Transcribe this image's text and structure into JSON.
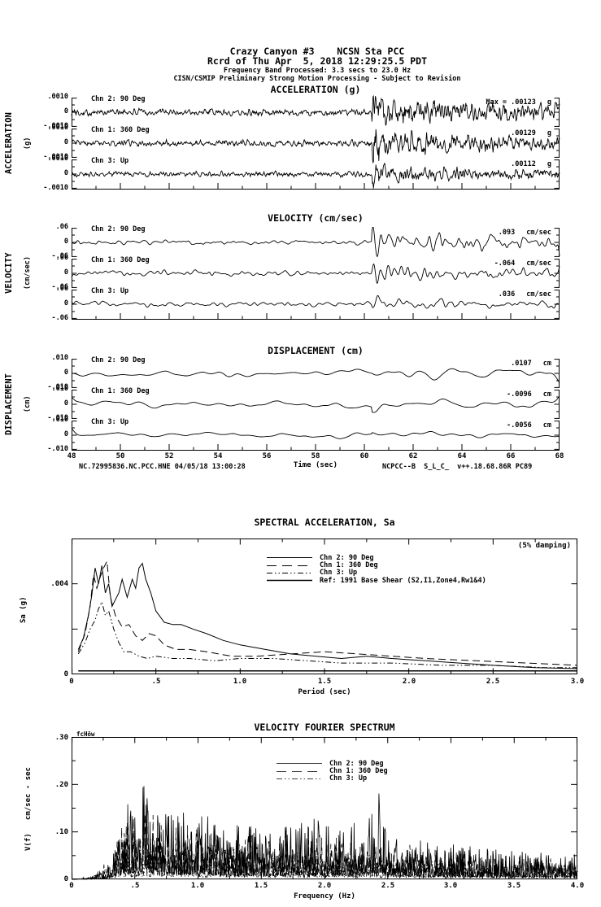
{
  "header": {
    "station_line": "Crazy Canyon #3    NCSN Sta PCC",
    "record_line": "Rcrd of Thu Apr  5, 2018 12:29:25.5 PDT",
    "band_line": "Frequency Band Processed: 3.3 secs to 23.0 Hz",
    "processing_line": "CISN/CSMIP Preliminary Strong Motion Processing - Subject to Revision"
  },
  "time_axis": {
    "label": "Time (sec)",
    "ticks": [
      "48",
      "50",
      "52",
      "54",
      "56",
      "58",
      "60",
      "62",
      "64",
      "66",
      "68"
    ]
  },
  "footer": {
    "left": "NC.72995836.NC.PCC.HNE 04/05/18 13:00:28",
    "right": "NCPCC--B  S_L_C_  v++.18.68.86R PC89"
  },
  "groups": [
    {
      "title": "ACCELERATION (g)",
      "side_label": "ACCELERATION",
      "side_units": "(g)",
      "tick_top": ".0010",
      "tick_mid": "0",
      "tick_bot": "-.0010",
      "traces": [
        {
          "channel": "Chn 2: 90 Deg",
          "peak_label": "Max = .00123",
          "unit": "g"
        },
        {
          "channel": "Chn 1: 360 Deg",
          "peak_label": ".00129",
          "unit": "g"
        },
        {
          "channel": "Chn 3: Up",
          "peak_label": ".00112",
          "unit": "g"
        }
      ]
    },
    {
      "title": "VELOCITY (cm/sec)",
      "side_label": "VELOCITY",
      "side_units": "(cm/sec)",
      "tick_top": ".06",
      "tick_mid": "0",
      "tick_bot": "-.06",
      "traces": [
        {
          "channel": "Chn 2: 90 Deg",
          "peak_label": ".093",
          "unit": "cm/sec"
        },
        {
          "channel": "Chn 1: 360 Deg",
          "peak_label": "-.064",
          "unit": "cm/sec"
        },
        {
          "channel": "Chn 3: Up",
          "peak_label": ".036",
          "unit": "cm/sec"
        }
      ]
    },
    {
      "title": "DISPLACEMENT (cm)",
      "side_label": "DISPLACEMENT",
      "side_units": "(cm)",
      "tick_top": ".010",
      "tick_mid": "0",
      "tick_bot": "-.010",
      "traces": [
        {
          "channel": "Chn 2: 90 Deg",
          "peak_label": ".0107",
          "unit": "cm"
        },
        {
          "channel": "Chn 1: 360 Deg",
          "peak_label": "-.0096",
          "unit": "cm"
        },
        {
          "channel": "Chn 3: Up",
          "peak_label": "-.0056",
          "unit": "cm"
        }
      ]
    }
  ],
  "sa": {
    "title": "SPECTRAL ACCELERATION, Sa",
    "damping_note": "(5% damping)",
    "xlabel": "Period (sec)",
    "ylabel": "Sa (g)",
    "x_ticks": [
      "0",
      ".5",
      "1.0",
      "1.5",
      "2.0",
      "2.5",
      "3.0"
    ],
    "y_tick_004": ".004",
    "y_tick_0": "0",
    "legend": [
      "Chn 2: 90 Deg",
      "Chn 1: 360 Deg",
      "Chn 3: Up",
      "Ref: 1991 Base Shear (S2,I1,Zone4,Rw1&4)"
    ]
  },
  "fourier": {
    "title": "VELOCITY FOURIER SPECTRUM",
    "corner_note": "fcHöw",
    "xlabel": "Frequency (Hz)",
    "ylabel": "V(f)   cm/sec - sec",
    "x_ticks": [
      "0",
      ".5",
      "1.0",
      "1.5",
      "2.0",
      "2.5",
      "3.0",
      "3.5",
      "4.0"
    ],
    "y_ticks": [
      ".30",
      ".20",
      ".10",
      "0"
    ],
    "legend": [
      "Chn 2: 90 Deg",
      "Chn 1: 360 Deg",
      "Chn 3: Up"
    ]
  },
  "chart_data": [
    {
      "id": "acceleration",
      "type": "line",
      "title": "ACCELERATION (g)",
      "xlabel": "Time (sec)",
      "x_range": [
        48,
        68
      ],
      "y_range": [
        -0.001,
        0.001
      ],
      "y_tick_values": [
        0.001,
        0,
        -0.001
      ],
      "event_arrival_sec": 60.3,
      "series": [
        {
          "name": "Chn 2: 90 Deg",
          "peak": 0.00123,
          "unit": "g",
          "gen": {
            "seed": 101,
            "n": 1000,
            "smooth": 1,
            "pre": 0.3,
            "post": 1.15,
            "event": 0.615,
            "decay": 0.5
          }
        },
        {
          "name": "Chn 1: 360 Deg",
          "peak": 0.00129,
          "unit": "g",
          "gen": {
            "seed": 102,
            "n": 1000,
            "smooth": 1,
            "pre": 0.28,
            "post": 1.2,
            "event": 0.615,
            "decay": 0.9
          }
        },
        {
          "name": "Chn 3: Up",
          "peak": 0.00112,
          "unit": "g",
          "gen": {
            "seed": 103,
            "n": 1000,
            "smooth": 1,
            "pre": 0.25,
            "post": 0.8,
            "event": 0.615,
            "decay": 0.9
          }
        }
      ]
    },
    {
      "id": "velocity",
      "type": "line",
      "title": "VELOCITY (cm/sec)",
      "xlabel": "Time (sec)",
      "x_range": [
        48,
        68
      ],
      "y_range": [
        -0.06,
        0.06
      ],
      "y_tick_values": [
        0.06,
        0,
        -0.06
      ],
      "event_arrival_sec": 60.3,
      "series": [
        {
          "name": "Chn 2: 90 Deg",
          "peak": 0.093,
          "unit": "cm/sec",
          "gen": {
            "seed": 201,
            "n": 800,
            "smooth": 6,
            "pre": 0.33,
            "post": 1.5,
            "event": 0.615,
            "decay": 0.4
          }
        },
        {
          "name": "Chn 1: 360 Deg",
          "peak": -0.064,
          "unit": "cm/sec",
          "gen": {
            "seed": 202,
            "n": 800,
            "smooth": 6,
            "pre": 0.3,
            "post": 0.95,
            "event": 0.615,
            "decay": 0.7
          }
        },
        {
          "name": "Chn 3: Up",
          "peak": 0.036,
          "unit": "cm/sec",
          "gen": {
            "seed": 203,
            "n": 800,
            "smooth": 7,
            "pre": 0.24,
            "post": 0.55,
            "event": 0.615,
            "decay": 0.7
          }
        }
      ]
    },
    {
      "id": "displacement",
      "type": "line",
      "title": "DISPLACEMENT (cm)",
      "xlabel": "Time (sec)",
      "x_range": [
        48,
        68
      ],
      "y_range": [
        -0.01,
        0.01
      ],
      "y_tick_values": [
        0.01,
        0,
        -0.01
      ],
      "event_arrival_sec": 60.3,
      "series": [
        {
          "name": "Chn 2: 90 Deg",
          "peak": 0.0107,
          "unit": "cm",
          "gen": {
            "seed": 301,
            "n": 600,
            "smooth": 45,
            "pre": 0.5,
            "post": 0.95,
            "event": 0.615,
            "decay": 0.5
          }
        },
        {
          "name": "Chn 1: 360 Deg",
          "peak": -0.0096,
          "unit": "cm",
          "gen": {
            "seed": 302,
            "n": 600,
            "smooth": 45,
            "pre": 0.55,
            "post": 0.85,
            "event": 0.615,
            "decay": 0.6
          }
        },
        {
          "name": "Chn 3: Up",
          "peak": -0.0056,
          "unit": "cm",
          "gen": {
            "seed": 303,
            "n": 600,
            "smooth": 45,
            "pre": 0.55,
            "post": 0.7,
            "event": 0.615,
            "decay": 0.7
          }
        }
      ]
    },
    {
      "id": "spectral_acceleration",
      "type": "line",
      "title": "SPECTRAL ACCELERATION, Sa",
      "subtitle": "(5% damping)",
      "xlabel": "Period (sec)",
      "ylabel": "Sa (g)",
      "xlim": [
        0,
        3.0
      ],
      "ylim": [
        0,
        0.006
      ],
      "x_tick_values": [
        0,
        0.5,
        1.0,
        1.5,
        2.0,
        2.5,
        3.0
      ],
      "y_tick_values": [
        0,
        0.002,
        0.004
      ],
      "legend_position": "upper center",
      "series": [
        {
          "name": "Chn 2: 90 Deg",
          "dash": "",
          "width": 1,
          "x": [
            0.04,
            0.07,
            0.1,
            0.12,
            0.14,
            0.16,
            0.18,
            0.2,
            0.22,
            0.24,
            0.26,
            0.28,
            0.3,
            0.33,
            0.36,
            0.38,
            0.4,
            0.42,
            0.44,
            0.47,
            0.5,
            0.55,
            0.6,
            0.65,
            0.72,
            0.8,
            0.9,
            1.0,
            1.15,
            1.3,
            1.45,
            1.6,
            1.75,
            1.9,
            2.1,
            2.3,
            2.5,
            2.75,
            3.0
          ],
          "y": [
            0.0011,
            0.0016,
            0.0026,
            0.0035,
            0.0047,
            0.004,
            0.0048,
            0.0036,
            0.004,
            0.003,
            0.0033,
            0.0036,
            0.0042,
            0.0034,
            0.0042,
            0.0038,
            0.0047,
            0.0049,
            0.0042,
            0.0036,
            0.0028,
            0.0023,
            0.0022,
            0.0022,
            0.002,
            0.0018,
            0.0015,
            0.0013,
            0.0011,
            0.0009,
            0.0008,
            0.0007,
            0.0008,
            0.0007,
            0.0006,
            0.0005,
            0.0004,
            0.0003,
            0.00025
          ]
        },
        {
          "name": "Chn 1: 360 Deg",
          "dash": "9,5",
          "width": 1,
          "x": [
            0.04,
            0.08,
            0.11,
            0.13,
            0.15,
            0.17,
            0.19,
            0.21,
            0.23,
            0.26,
            0.3,
            0.34,
            0.38,
            0.42,
            0.46,
            0.5,
            0.55,
            0.62,
            0.7,
            0.8,
            0.95,
            1.1,
            1.3,
            1.5,
            1.7,
            1.9,
            2.1,
            2.4,
            2.7,
            3.0
          ],
          "y": [
            0.001,
            0.0018,
            0.003,
            0.0044,
            0.0038,
            0.0043,
            0.0047,
            0.005,
            0.0034,
            0.0026,
            0.0021,
            0.0022,
            0.0017,
            0.0015,
            0.0018,
            0.0017,
            0.0013,
            0.0011,
            0.0011,
            0.001,
            0.0008,
            0.0008,
            0.0009,
            0.001,
            0.0009,
            0.0008,
            0.0007,
            0.0006,
            0.0005,
            0.0004
          ]
        },
        {
          "name": "Chn 3: Up",
          "dash": "7,3,1.5,3,1.5,3",
          "width": 1,
          "x": [
            0.04,
            0.08,
            0.11,
            0.14,
            0.16,
            0.18,
            0.2,
            0.22,
            0.25,
            0.28,
            0.31,
            0.35,
            0.4,
            0.45,
            0.5,
            0.6,
            0.7,
            0.85,
            1.0,
            1.2,
            1.4,
            1.6,
            1.9,
            2.2,
            2.5,
            2.8,
            3.0
          ],
          "y": [
            0.0009,
            0.0014,
            0.002,
            0.0024,
            0.0029,
            0.0032,
            0.0026,
            0.0028,
            0.002,
            0.0014,
            0.001,
            0.001,
            0.0008,
            0.0007,
            0.0008,
            0.0007,
            0.0007,
            0.0006,
            0.0007,
            0.0007,
            0.0006,
            0.0005,
            0.0005,
            0.0004,
            0.0004,
            0.0003,
            0.0003
          ]
        },
        {
          "name": "Ref: 1991 Base Shear (S2,I1,Zone4,Rw1&4)",
          "dash": "",
          "width": 1.5,
          "x": [
            0.04,
            3.0
          ],
          "y": [
            0.00015,
            0.00015
          ]
        }
      ]
    },
    {
      "id": "velocity_fourier_spectrum",
      "type": "line",
      "title": "VELOCITY FOURIER SPECTRUM",
      "xlabel": "Frequency (Hz)",
      "ylabel": "V(f)   cm/sec - sec",
      "xlim": [
        0,
        4.0
      ],
      "ylim": [
        0,
        0.3
      ],
      "x_tick_values": [
        0,
        0.5,
        1.0,
        1.5,
        2.0,
        2.5,
        3.0,
        3.5,
        4.0
      ],
      "y_tick_values": [
        0,
        0.1,
        0.2,
        0.3
      ],
      "series": [
        {
          "name": "Chn 2: 90 Deg",
          "dash": "",
          "width": 0.8,
          "seed": 401,
          "n": 1000,
          "envelope": [
            [
              0,
              0
            ],
            [
              0.15,
              0.004
            ],
            [
              0.25,
              0.02
            ],
            [
              0.35,
              0.08
            ],
            [
              0.45,
              0.17
            ],
            [
              0.55,
              0.21
            ],
            [
              0.65,
              0.18
            ],
            [
              0.8,
              0.15
            ],
            [
              1.0,
              0.14
            ],
            [
              1.3,
              0.12
            ],
            [
              1.6,
              0.11
            ],
            [
              1.9,
              0.13
            ],
            [
              2.2,
              0.11
            ],
            [
              2.45,
              0.19
            ],
            [
              2.55,
              0.1
            ],
            [
              2.8,
              0.08
            ],
            [
              3.0,
              0.075
            ],
            [
              3.3,
              0.065
            ],
            [
              3.6,
              0.06
            ],
            [
              4.0,
              0.055
            ]
          ]
        },
        {
          "name": "Chn 1: 360 Deg",
          "dash": "9,5",
          "width": 0.8,
          "seed": 402,
          "n": 1000,
          "envelope": [
            [
              0,
              0
            ],
            [
              0.15,
              0.004
            ],
            [
              0.3,
              0.05
            ],
            [
              0.45,
              0.15
            ],
            [
              0.6,
              0.16
            ],
            [
              0.8,
              0.12
            ],
            [
              1.0,
              0.11
            ],
            [
              1.5,
              0.09
            ],
            [
              2.0,
              0.09
            ],
            [
              2.5,
              0.08
            ],
            [
              3.0,
              0.06
            ],
            [
              3.5,
              0.05
            ],
            [
              4.0,
              0.045
            ]
          ]
        },
        {
          "name": "Chn 3: Up",
          "dash": "7,3,1.5,3,1.5,3",
          "width": 0.8,
          "seed": 403,
          "n": 1000,
          "envelope": [
            [
              0,
              0
            ],
            [
              0.2,
              0.01
            ],
            [
              0.35,
              0.05
            ],
            [
              0.5,
              0.09
            ],
            [
              0.7,
              0.08
            ],
            [
              1.0,
              0.07
            ],
            [
              1.5,
              0.06
            ],
            [
              2.0,
              0.055
            ],
            [
              2.5,
              0.05
            ],
            [
              3.0,
              0.04
            ],
            [
              3.5,
              0.035
            ],
            [
              4.0,
              0.03
            ]
          ]
        }
      ]
    }
  ]
}
